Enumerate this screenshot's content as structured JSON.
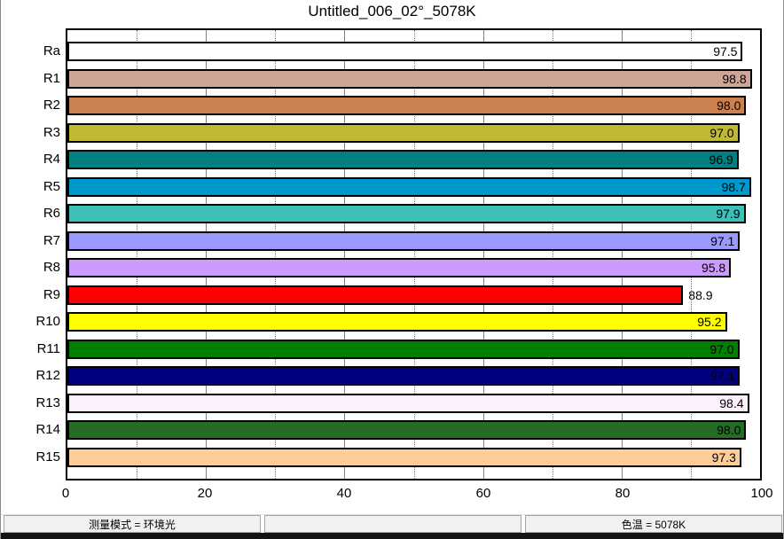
{
  "title": "Untitled_006_02°_5078K",
  "chart_data": {
    "type": "bar",
    "orientation": "horizontal",
    "title": "Untitled_006_02°_5078K",
    "categories": [
      "Ra",
      "R1",
      "R2",
      "R3",
      "R4",
      "R5",
      "R6",
      "R7",
      "R8",
      "R9",
      "R10",
      "R11",
      "R12",
      "R13",
      "R14",
      "R15"
    ],
    "values": [
      97.5,
      98.8,
      98.0,
      97.0,
      96.9,
      98.7,
      97.9,
      97.1,
      95.8,
      88.9,
      95.2,
      97.0,
      97.1,
      98.4,
      98.0,
      97.3
    ],
    "bar_colors": [
      "#FFFFFF",
      "#CDA697",
      "#CA814F",
      "#BFB934",
      "#008080",
      "#0099CC",
      "#3DC0B8",
      "#9999FF",
      "#CC99FF",
      "#FF0000",
      "#FFFF00",
      "#008000",
      "#000080",
      "#FCF0FC",
      "#256D25",
      "#FFCC99"
    ],
    "xlim": [
      0,
      100
    ],
    "x_major_ticks": [
      0,
      20,
      40,
      60,
      80,
      100
    ],
    "x_minor_ticks": [
      10,
      30,
      50,
      70,
      90
    ],
    "grid": "vertical; solid gray at major ticks, dotted gray at minor ticks",
    "value_label_placement": "inside bar end (outside for short bars)",
    "value_label_inside_threshold": 90,
    "bar_border_color": "#000000",
    "gridline_color": "#808080"
  },
  "status_bar": {
    "segments": [
      {
        "text": "测量模式 = 环境光"
      },
      {
        "text": ""
      },
      {
        "text": "色温 = 5078K"
      }
    ]
  }
}
